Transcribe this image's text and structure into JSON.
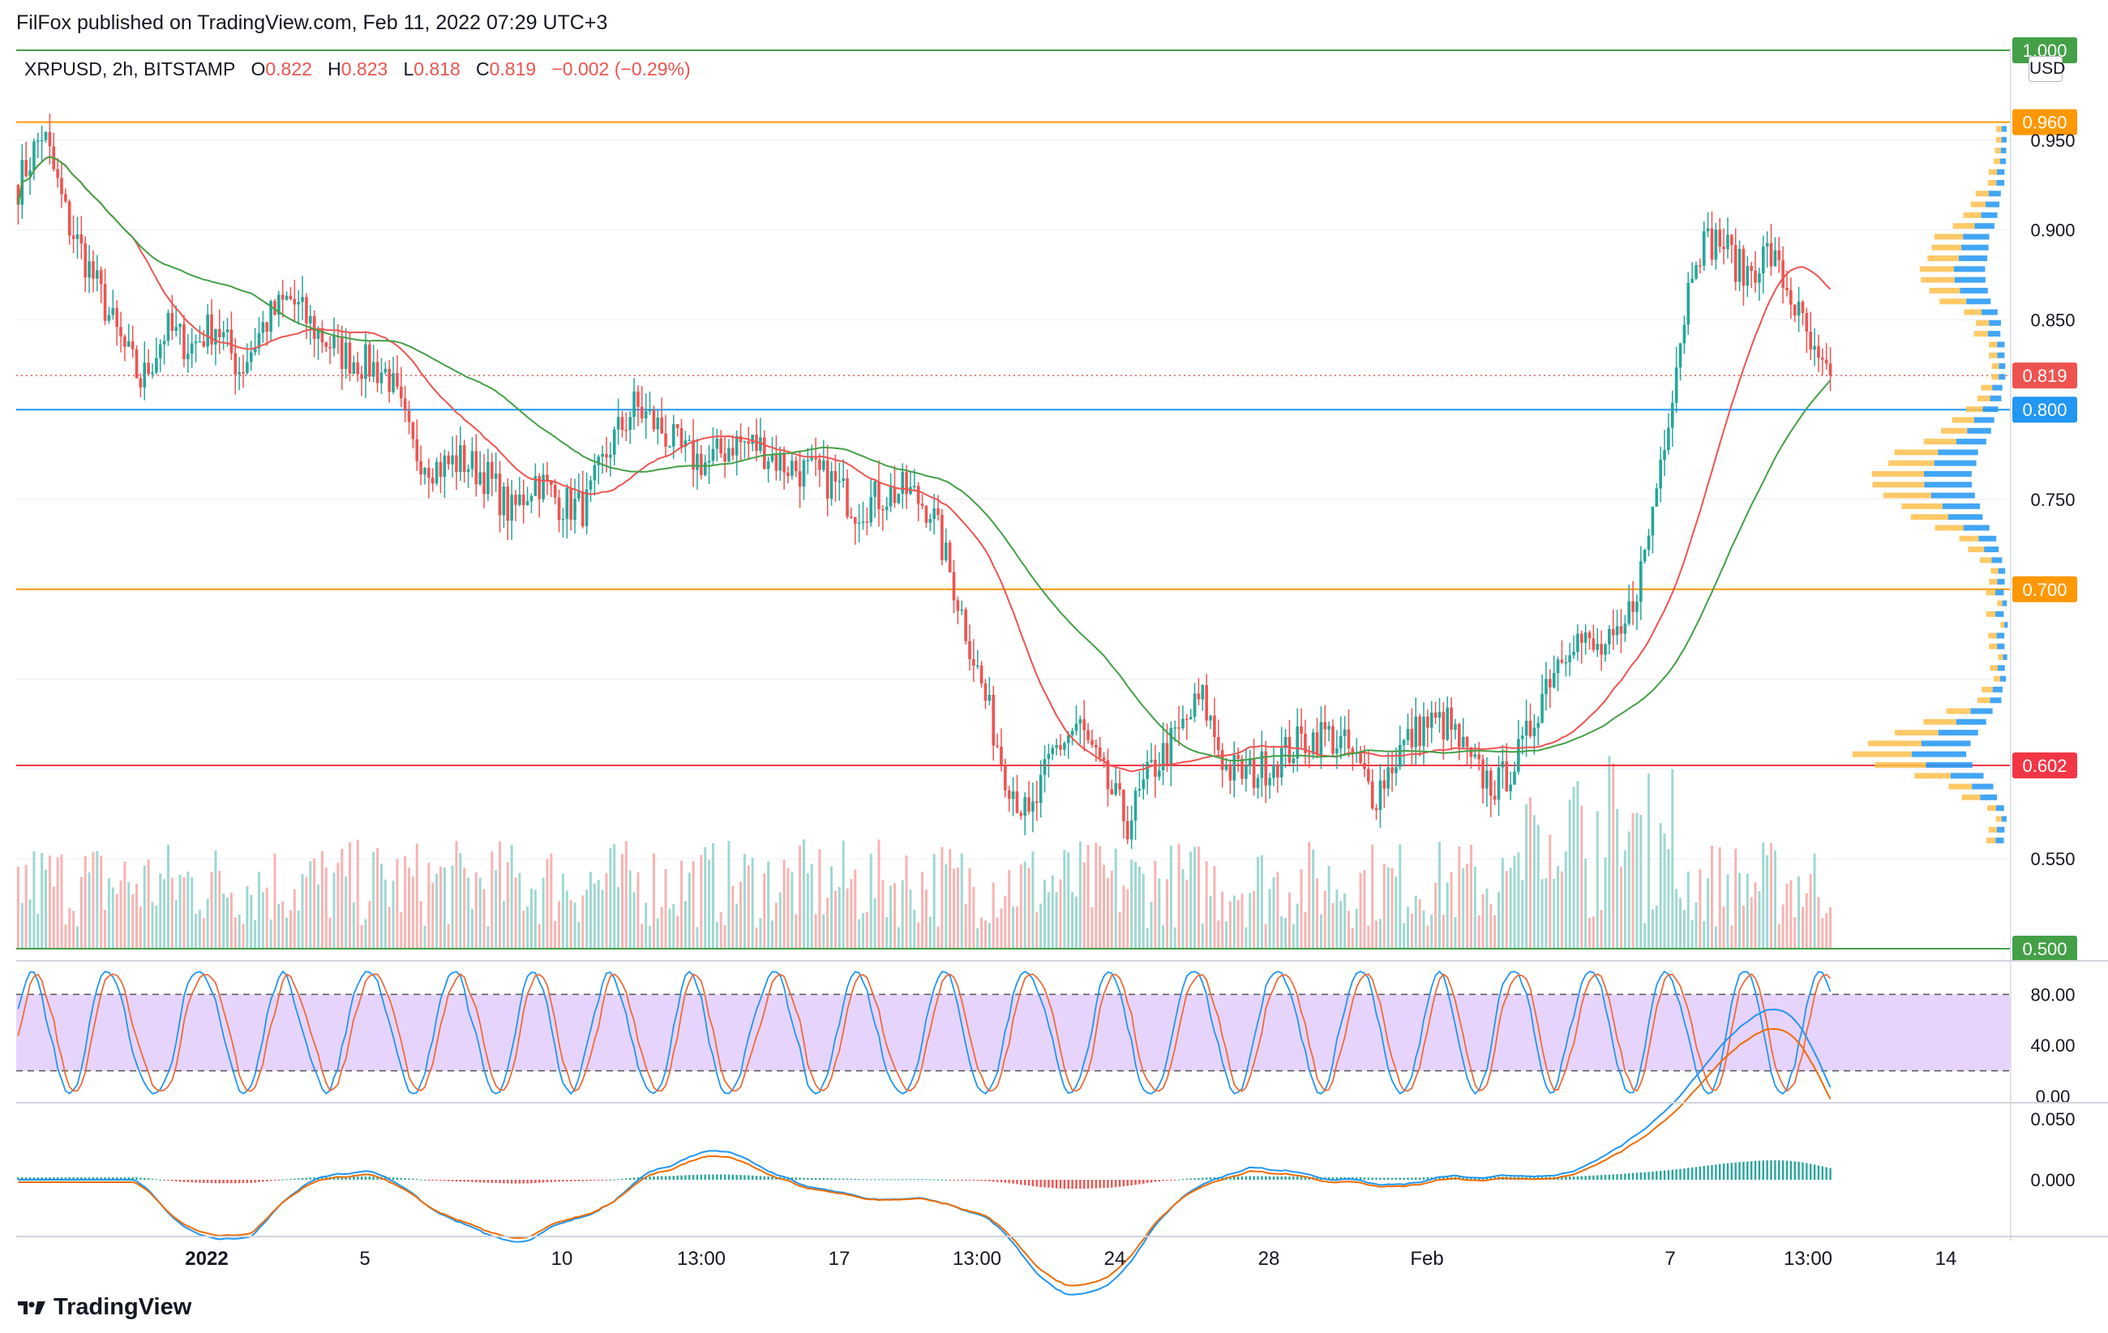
{
  "header": {
    "publisher_line": "FilFox published on TradingView.com, Feb 11, 2022 07:29 UTC+3"
  },
  "symbol": {
    "name": "XRPUSD, 2h, BITSTAMP",
    "open_label": "O",
    "open": "0.822",
    "high_label": "H",
    "high": "0.823",
    "low_label": "L",
    "low": "0.818",
    "close_label": "C",
    "close": "0.819",
    "change": "−0.002 (−0.29%)"
  },
  "currency": "USD",
  "footer": {
    "brand": "TradingView"
  },
  "colors": {
    "up": "#26a69a",
    "down": "#ef5350",
    "ma_red": "#ef5350",
    "ma_green": "#43a047",
    "orange": "#ff9800",
    "blue": "#2196f3",
    "stoch_band": "#e1c9fb",
    "stoch_k": "#2196f3",
    "stoch_d": "#ef6c3a",
    "macd": "#2196f3",
    "signal": "#ef6c00"
  },
  "chart_data": {
    "type": "candlestick",
    "price_axis": {
      "min": 0.5,
      "max": 1.0,
      "ticks": [
        "0.950",
        "0.900",
        "0.850",
        "0.750",
        "0.550"
      ]
    },
    "x_axis_labels": [
      "2022",
      "5",
      "10",
      "13:00",
      "17",
      "13:00",
      "24",
      "28",
      "Feb",
      "7",
      "13:00",
      "14"
    ],
    "price_path": [
      [
        0,
        0.925
      ],
      [
        2,
        0.955
      ],
      [
        4,
        0.905
      ],
      [
        6,
        0.875
      ],
      [
        8,
        0.842
      ],
      [
        10,
        0.815
      ],
      [
        12,
        0.845
      ],
      [
        14,
        0.835
      ],
      [
        16,
        0.848
      ],
      [
        18,
        0.822
      ],
      [
        20,
        0.848
      ],
      [
        22,
        0.862
      ],
      [
        24,
        0.845
      ],
      [
        26,
        0.832
      ],
      [
        28,
        0.826
      ],
      [
        30,
        0.82
      ],
      [
        32,
        0.778
      ],
      [
        34,
        0.768
      ],
      [
        36,
        0.772
      ],
      [
        38,
        0.763
      ],
      [
        40,
        0.742
      ],
      [
        42,
        0.762
      ],
      [
        44,
        0.748
      ],
      [
        46,
        0.745
      ],
      [
        48,
        0.78
      ],
      [
        50,
        0.802
      ],
      [
        52,
        0.79
      ],
      [
        54,
        0.775
      ],
      [
        56,
        0.77
      ],
      [
        58,
        0.782
      ],
      [
        60,
        0.78
      ],
      [
        62,
        0.77
      ],
      [
        64,
        0.765
      ],
      [
        66,
        0.76
      ],
      [
        68,
        0.745
      ],
      [
        70,
        0.752
      ],
      [
        72,
        0.755
      ],
      [
        74,
        0.745
      ],
      [
        76,
        0.7
      ],
      [
        78,
        0.65
      ],
      [
        80,
        0.6
      ],
      [
        82,
        0.57
      ],
      [
        84,
        0.61
      ],
      [
        86,
        0.625
      ],
      [
        88,
        0.595
      ],
      [
        90,
        0.57
      ],
      [
        92,
        0.6
      ],
      [
        94,
        0.618
      ],
      [
        96,
        0.64
      ],
      [
        98,
        0.6
      ],
      [
        100,
        0.597
      ],
      [
        102,
        0.605
      ],
      [
        104,
        0.615
      ],
      [
        106,
        0.62
      ],
      [
        108,
        0.61
      ],
      [
        110,
        0.585
      ],
      [
        112,
        0.61
      ],
      [
        114,
        0.625
      ],
      [
        116,
        0.625
      ],
      [
        118,
        0.6
      ],
      [
        120,
        0.59
      ],
      [
        122,
        0.61
      ],
      [
        124,
        0.65
      ],
      [
        126,
        0.675
      ],
      [
        128,
        0.665
      ],
      [
        130,
        0.67
      ],
      [
        132,
        0.72
      ],
      [
        134,
        0.805
      ],
      [
        136,
        0.89
      ],
      [
        138,
        0.895
      ],
      [
        140,
        0.875
      ],
      [
        142,
        0.888
      ],
      [
        144,
        0.86
      ],
      [
        146,
        0.822
      ],
      [
        147,
        0.819
      ]
    ],
    "horizontal_levels": [
      {
        "label": "1.000",
        "value": 1.0,
        "color": "#43a047"
      },
      {
        "label": "0.960",
        "value": 0.96,
        "color": "#ff9800"
      },
      {
        "label": "0.800",
        "value": 0.8,
        "color": "#2196f3"
      },
      {
        "label": "0.700",
        "value": 0.7,
        "color": "#ff9800"
      },
      {
        "label": "0.602",
        "value": 0.602,
        "color": "#f23645"
      },
      {
        "label": "0.500",
        "value": 0.5,
        "color": "#43a047"
      }
    ],
    "last_price": {
      "label": "0.819",
      "value": 0.819
    },
    "stochastic": {
      "ticks": [
        "80.00",
        "40.00",
        "0.00"
      ],
      "upper": 80,
      "lower": 20
    },
    "macd": {
      "ticks": [
        "0.050",
        "0.000"
      ]
    }
  }
}
